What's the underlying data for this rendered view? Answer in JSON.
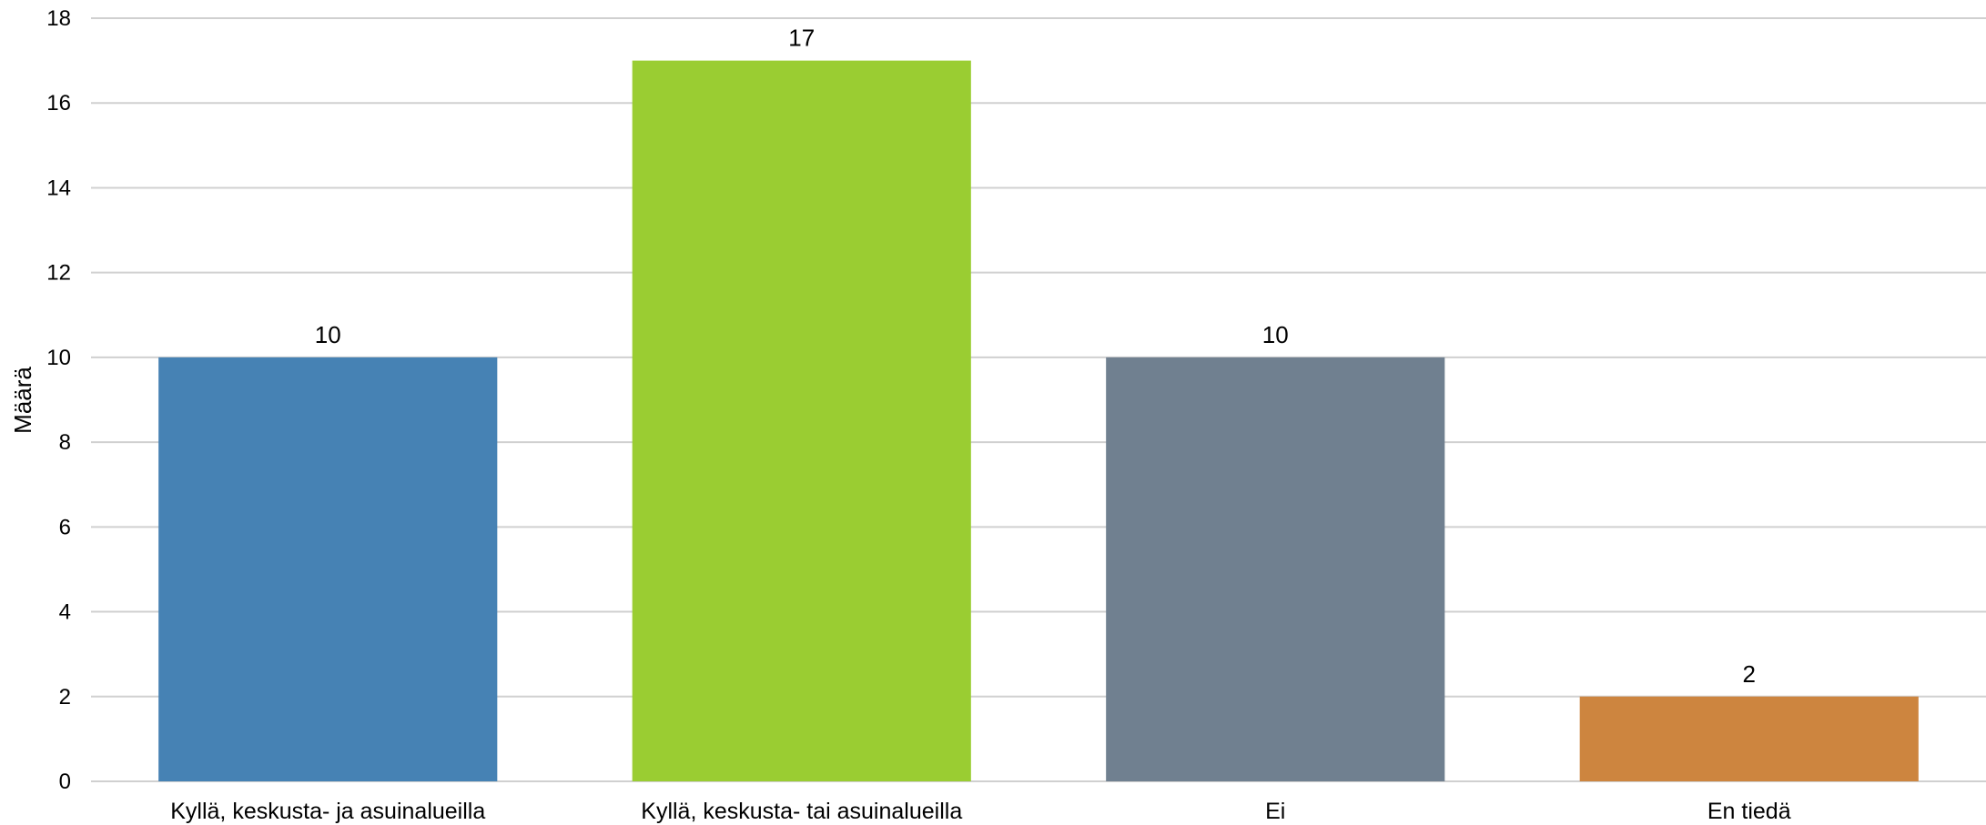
{
  "chart_data": {
    "type": "bar",
    "categories": [
      "Kyllä, keskusta- ja asuinalueilla",
      "Kyllä, keskusta- tai asuinalueilla",
      "Ei",
      "En tiedä"
    ],
    "values": [
      10,
      17,
      10,
      2
    ],
    "colors": [
      "#4682B4",
      "#9ACD32",
      "#708090",
      "#CD853F"
    ],
    "ylabel": "Määrä",
    "xlabel": "",
    "ylim": [
      0,
      18
    ],
    "yticks": [
      0,
      2,
      4,
      6,
      8,
      10,
      12,
      14,
      16,
      18
    ],
    "grid": true,
    "data_labels": true
  }
}
